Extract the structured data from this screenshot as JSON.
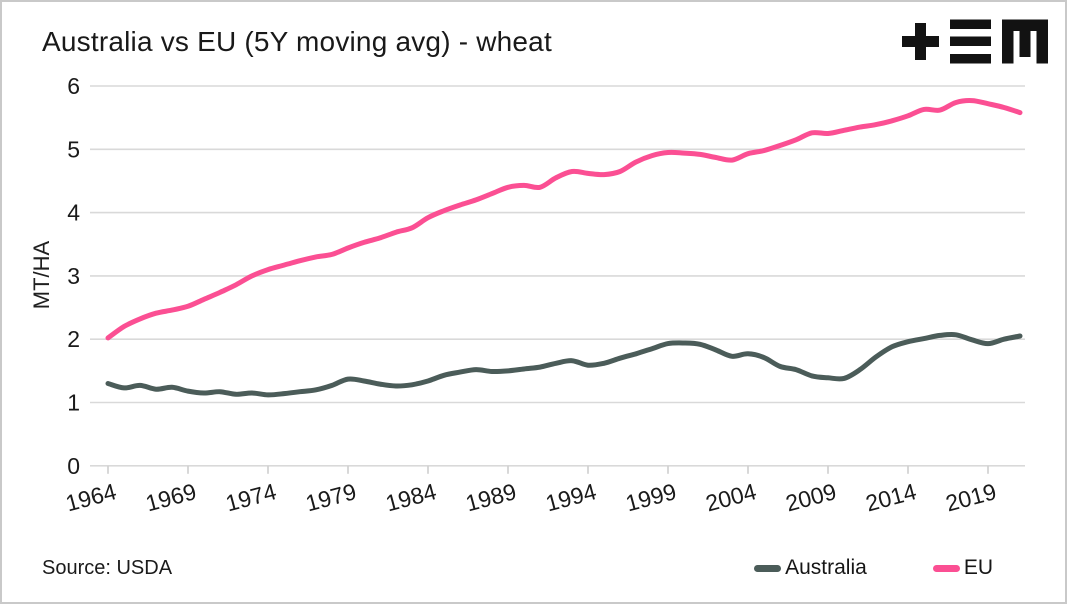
{
  "header": {
    "title": "Australia vs EU (5Y moving avg) - wheat",
    "logo_name": "tem-logo"
  },
  "footer": {
    "source": "Source: USDA"
  },
  "legend": {
    "items": [
      {
        "label": "Australia",
        "color": "#4b5c59"
      },
      {
        "label": "EU",
        "color": "#fb4f93"
      }
    ]
  },
  "colors": {
    "australia_line": "#4b5c59",
    "eu_line": "#fb4f93",
    "gridline": "#d9d9d9",
    "tick": "#cfcfcf",
    "text": "#1a1a1a",
    "logo": "#121212",
    "card_border": "#c9c9c9"
  },
  "chart_data": {
    "type": "line",
    "title": "Australia vs EU (5Y moving avg) - wheat",
    "xlabel": "",
    "ylabel": "MT/HA",
    "ylim": [
      0,
      6
    ],
    "y_ticks": [
      0,
      1,
      2,
      3,
      4,
      5,
      6
    ],
    "x_ticks": [
      1964,
      1969,
      1974,
      1979,
      1984,
      1989,
      1994,
      1999,
      2004,
      2009,
      2014,
      2019
    ],
    "grid": "horizontal",
    "legend_position": "bottom-right",
    "source": "USDA",
    "x": [
      1964,
      1965,
      1966,
      1967,
      1968,
      1969,
      1970,
      1971,
      1972,
      1973,
      1974,
      1975,
      1976,
      1977,
      1978,
      1979,
      1980,
      1981,
      1982,
      1983,
      1984,
      1985,
      1986,
      1987,
      1988,
      1989,
      1990,
      1991,
      1992,
      1993,
      1994,
      1995,
      1996,
      1997,
      1998,
      1999,
      2000,
      2001,
      2002,
      2003,
      2004,
      2005,
      2006,
      2007,
      2008,
      2009,
      2010,
      2011,
      2012,
      2013,
      2014,
      2015,
      2016,
      2017,
      2018,
      2019,
      2020,
      2021
    ],
    "series": [
      {
        "name": "Australia",
        "color": "#4b5c59",
        "values": [
          1.3,
          1.23,
          1.27,
          1.21,
          1.24,
          1.18,
          1.15,
          1.17,
          1.13,
          1.15,
          1.12,
          1.14,
          1.17,
          1.2,
          1.27,
          1.37,
          1.34,
          1.29,
          1.26,
          1.28,
          1.34,
          1.43,
          1.48,
          1.52,
          1.49,
          1.5,
          1.53,
          1.56,
          1.62,
          1.66,
          1.59,
          1.62,
          1.7,
          1.77,
          1.85,
          1.93,
          1.94,
          1.92,
          1.83,
          1.73,
          1.77,
          1.71,
          1.57,
          1.52,
          1.42,
          1.39,
          1.38,
          1.52,
          1.72,
          1.88,
          1.96,
          2.01,
          2.06,
          2.07,
          1.99,
          1.93,
          2.0,
          2.05
        ]
      },
      {
        "name": "EU",
        "color": "#fb4f93",
        "values": [
          2.02,
          2.2,
          2.32,
          2.41,
          2.46,
          2.52,
          2.63,
          2.74,
          2.86,
          3.0,
          3.1,
          3.17,
          3.24,
          3.3,
          3.34,
          3.44,
          3.53,
          3.6,
          3.69,
          3.76,
          3.92,
          4.03,
          4.12,
          4.2,
          4.3,
          4.4,
          4.43,
          4.4,
          4.55,
          4.65,
          4.62,
          4.6,
          4.65,
          4.8,
          4.9,
          4.95,
          4.94,
          4.92,
          4.87,
          4.83,
          4.93,
          4.98,
          5.06,
          5.15,
          5.26,
          5.25,
          5.3,
          5.35,
          5.39,
          5.45,
          5.53,
          5.63,
          5.62,
          5.74,
          5.77,
          5.72,
          5.66,
          5.58
        ]
      }
    ]
  }
}
